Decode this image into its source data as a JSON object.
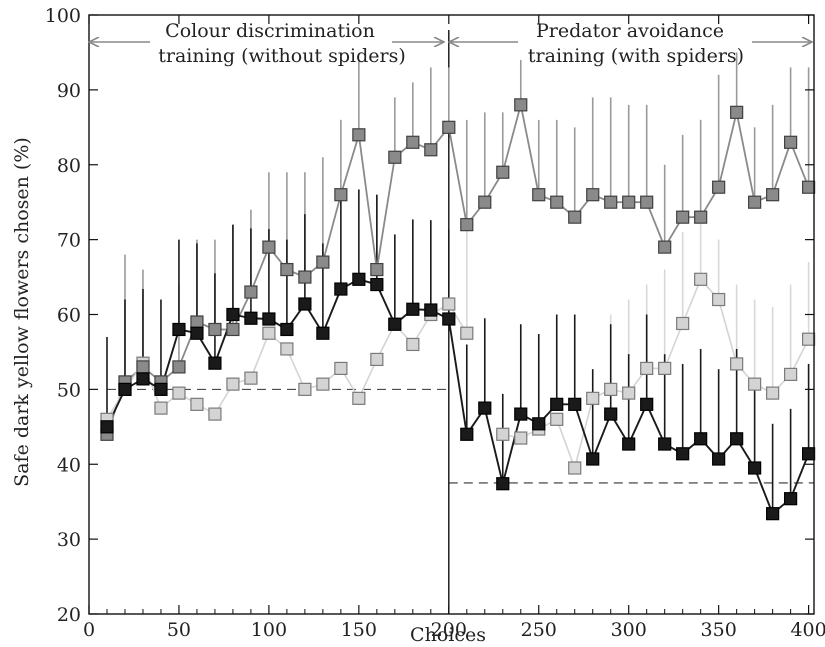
{
  "chart_data": {
    "type": "line",
    "xlabel": "Choices",
    "ylabel": "Safe dark yellow flowers chosen (%)",
    "xlim": [
      0,
      403
    ],
    "ylim": [
      20,
      100
    ],
    "xticks": [
      0,
      50,
      100,
      150,
      200,
      250,
      300,
      350,
      400
    ],
    "yticks": [
      20,
      30,
      40,
      50,
      60,
      70,
      80,
      90,
      100
    ],
    "reference_lines": [
      {
        "y": 50,
        "x_range": [
          10,
          200
        ],
        "style": "dashed"
      },
      {
        "y": 37.5,
        "x_range": [
          200,
          403
        ],
        "style": "dashed"
      }
    ],
    "divider_x": 200,
    "annotations": {
      "phase1_line1": "Colour discrimination",
      "phase1_line2": "training (without spiders)",
      "phase2_line1": "Predator avoidance",
      "phase2_line2": "training (with spiders)"
    },
    "x": [
      10,
      20,
      30,
      40,
      50,
      60,
      70,
      80,
      90,
      100,
      110,
      120,
      130,
      140,
      150,
      160,
      170,
      180,
      190,
      200,
      210,
      220,
      230,
      240,
      250,
      260,
      270,
      280,
      290,
      300,
      310,
      320,
      330,
      340,
      350,
      360,
      370,
      380,
      390,
      400
    ],
    "series": [
      {
        "color": "#8a8a8a",
        "values": [
          44,
          51,
          53,
          51,
          53,
          59,
          58,
          58,
          63,
          69,
          66,
          65,
          67,
          76,
          84,
          66,
          81,
          83,
          82,
          85,
          72,
          75,
          79,
          88,
          76,
          75,
          73,
          76,
          75,
          75,
          75,
          69,
          73,
          73,
          77,
          87,
          75,
          76,
          83,
          77
        ],
        "upper": [
          null,
          68,
          66,
          null,
          64,
          70,
          70,
          72,
          74,
          79,
          79,
          79,
          81,
          86,
          94,
          76,
          89,
          91,
          93,
          93,
          86,
          87,
          87,
          94,
          86,
          86,
          85,
          89,
          89,
          88,
          88,
          80,
          84,
          86,
          92,
          95,
          85,
          88,
          93,
          93
        ]
      },
      {
        "color": "#d4d4d4",
        "values": [
          46,
          50,
          53.5,
          47.5,
          49.5,
          48,
          46.7,
          50.7,
          51.5,
          57.5,
          55.4,
          50,
          50.7,
          52.8,
          48.8,
          54,
          58.7,
          56,
          60,
          61.4,
          57.5,
          null,
          44,
          43.5,
          44.7,
          46,
          39.5,
          48.8,
          50,
          49.5,
          52.8,
          52.8,
          58.8,
          64.7,
          62,
          53.4,
          50.7,
          49.5,
          52,
          56.7
        ],
        "upper": [
          null,
          null,
          null,
          null,
          null,
          null,
          null,
          null,
          null,
          null,
          null,
          null,
          null,
          null,
          null,
          null,
          null,
          null,
          null,
          null,
          72,
          null,
          null,
          null,
          null,
          null,
          null,
          null,
          60,
          62,
          64,
          66,
          71,
          73,
          70,
          64,
          62,
          61,
          64,
          67
        ]
      },
      {
        "color": "#1a1a1a",
        "values": [
          45,
          50,
          51.4,
          50,
          58,
          57.5,
          53.5,
          60,
          59.5,
          59.4,
          58,
          61.4,
          57.5,
          63.4,
          64.7,
          64,
          58.7,
          60.7,
          60.6,
          59.4,
          44,
          47.5,
          37.4,
          46.7,
          45.4,
          48,
          48,
          40.7,
          46.7,
          42.7,
          48,
          42.7,
          41.4,
          43.4,
          40.7,
          43.4,
          39.5,
          33.4,
          35.4,
          41.4
        ]
      }
    ]
  }
}
